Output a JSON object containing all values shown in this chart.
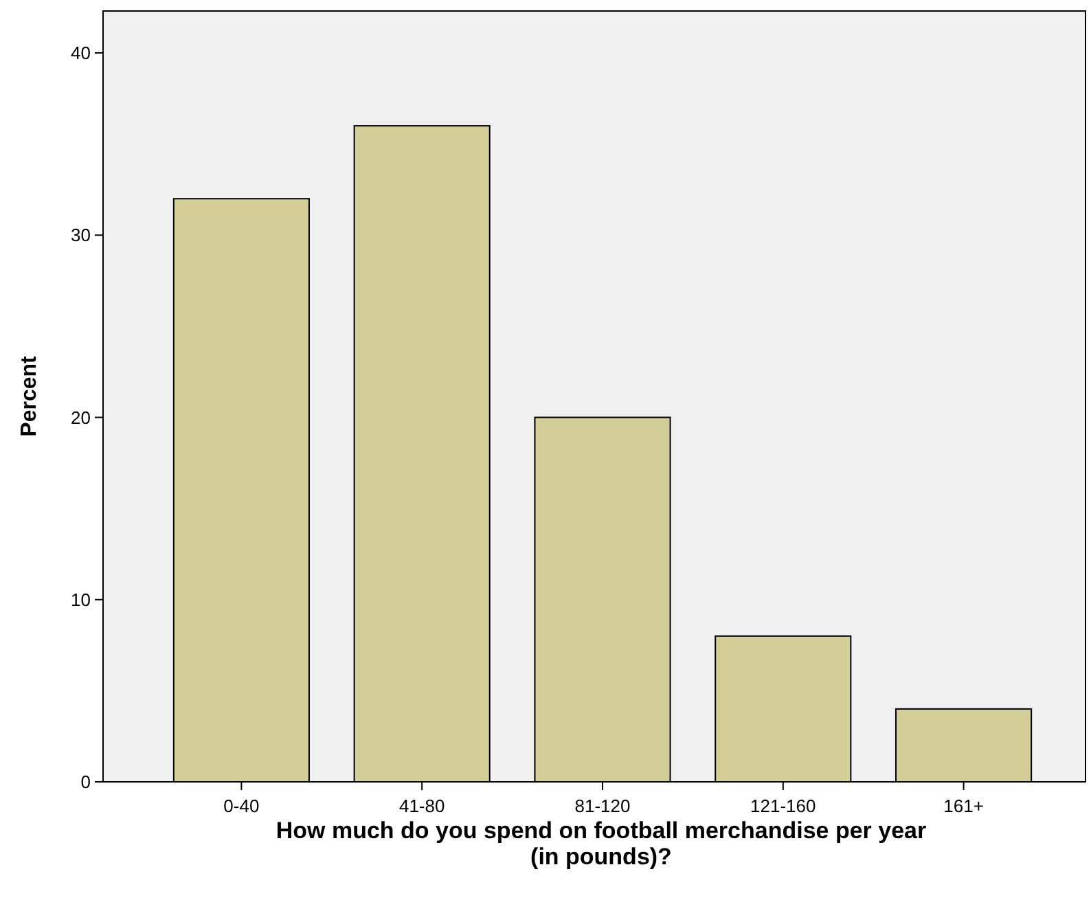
{
  "chart_data": {
    "type": "bar",
    "xlabel": "How much do you spend on football merchandise per year (in pounds)?",
    "ylabel": "Percent",
    "categories": [
      "0-40",
      "41-80",
      "81-120",
      "121-160",
      "161+"
    ],
    "values": [
      32,
      36,
      20,
      8,
      4
    ],
    "color": "#d3ce97",
    "ylim": [
      0,
      42.3
    ],
    "yticks": [
      0,
      10,
      20,
      30,
      40
    ],
    "grid": false
  }
}
